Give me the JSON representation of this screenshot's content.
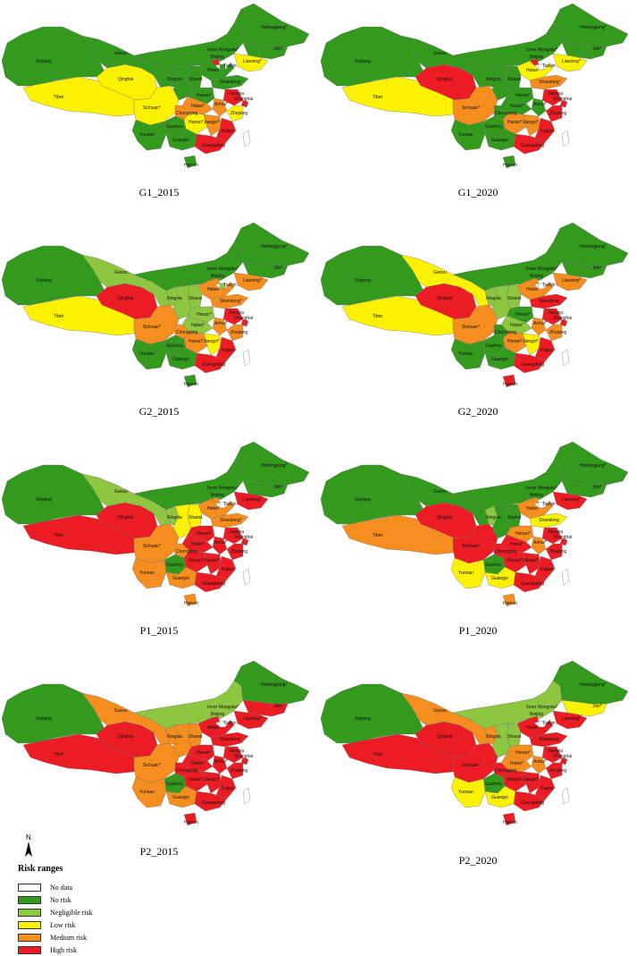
{
  "legend": {
    "title": "Risk ranges",
    "items": [
      {
        "label": "No data",
        "color": "#ffffff"
      },
      {
        "label": "No risk",
        "color": "#339a1e"
      },
      {
        "label": "Negligible risk",
        "color": "#8dc63f"
      },
      {
        "label": "Low risk",
        "color": "#fdf102"
      },
      {
        "label": "Medium risk",
        "color": "#f58e1f"
      },
      {
        "label": "High risk",
        "color": "#ec1c24"
      }
    ]
  },
  "north_arrow": {
    "label": "N"
  },
  "panels": [
    {
      "title": "G1_2015",
      "labels": [
        "Xinjiang",
        "Gansu",
        "Qinghai",
        "Tibet",
        "Ningxia",
        "Shanxi",
        "Henan*",
        "Sichuan*",
        "Chongqing",
        "Hubei*",
        "Guizhou",
        "Yunnan",
        "Guangxi",
        "Hainan",
        "Hunan*",
        "Jiangxi*",
        "Anhui*",
        "Shandong",
        "Inner Mongolia*",
        "Heilongjiang*",
        "Jilin*",
        "Liaoning*",
        "Beijing",
        "Hebei",
        "Tianjin",
        "Zhejiang",
        "Shanghai",
        "Jiangsu",
        "Fujian",
        "Guangdong"
      ]
    },
    {
      "title": "G1_2020",
      "labels": [
        "Xinjiang",
        "Gansu",
        "Qinghai",
        "Tibet",
        "Ningxia",
        "Shanxi",
        "Henan*",
        "Sichuan*",
        "Chongqing",
        "Hubei*",
        "Guizhou",
        "Yunnan",
        "Guangxi",
        "Hainan",
        "Hunan*",
        "Jiangxi*",
        "Anhui*",
        "Shandong*",
        "Inner Mongolia*",
        "Heilongjiang*",
        "Jilin*",
        "Liaoning*",
        "Beijing",
        "Hebei",
        "Tianjin",
        "Zhejiang",
        "Shanghai",
        "Jiangsu",
        "Fujian",
        "Guangdong"
      ]
    },
    {
      "title": "G2_2015",
      "labels": [
        "Xinjiang",
        "Gansu",
        "Qinghai",
        "Tibet",
        "Ningxia",
        "Shanxi",
        "Henan*",
        "Sichuan*",
        "Chongqing",
        "Hubei*",
        "Guizhou",
        "Yunnan",
        "Guangxi",
        "Hainan",
        "Hunan*",
        "Jiangxi*",
        "Anhui*",
        "Shandong*",
        "Inner Mongolia*",
        "Heilongjiang*",
        "Jilin*",
        "Liaoning*",
        "Beijing",
        "Hebei",
        "Tianjin",
        "Zhejiang",
        "Shanghai",
        "Jiangsu",
        "Fujian",
        "Guangdong"
      ]
    },
    {
      "title": "G2_2020",
      "labels": [
        "Xinjiang",
        "Gansu",
        "Qinghai",
        "Tibet",
        "Ningxia",
        "Shanxi",
        "Henan*",
        "Sichuan*",
        "Chongqing",
        "Hubei*",
        "Guizhou",
        "Yunnan",
        "Guangxi",
        "Hainan",
        "Hunan*",
        "Jiangxi*",
        "Anhui*",
        "Shandong",
        "Inner Mongolia*",
        "Heilongjiang*",
        "Jilin*",
        "Liaoning*",
        "Beijing",
        "Hebei",
        "Tianjin",
        "Zhejiang",
        "Shanghai",
        "Jiangsu",
        "Fujian",
        "Guangdong"
      ]
    },
    {
      "title": "P1_2015",
      "labels": [
        "Xinjiang",
        "Gansu",
        "Qinghai",
        "Tibet",
        "Ningxia",
        "Shanxi",
        "Henan*",
        "Sichuan*",
        "Chongqing",
        "Hubei*",
        "Guizhou",
        "Yunnan",
        "Guangxi",
        "Hainan",
        "Hunan*",
        "Jiangxi*",
        "Anhui*",
        "Shandong*",
        "Inner Mongolia*",
        "Heilongjiang*",
        "Jilin*",
        "Liaoning*",
        "Beijing",
        "Hebei",
        "Tianjin",
        "Zhejiang",
        "Shanghai",
        "Jiangsu",
        "Fujian",
        "Guangdong"
      ]
    },
    {
      "title": "P1_2020",
      "labels": [
        "Xinjiang",
        "Gansu",
        "Qinghai",
        "Tibet",
        "Ningxia",
        "Shanxi",
        "Henan*",
        "Sichuan*",
        "Chongqing",
        "Hubei*",
        "Guizhou",
        "Yunnan",
        "Guangxi",
        "Hainan",
        "Hunan*",
        "Jiangxi*",
        "Anhui*",
        "Shandong",
        "Inner Mongolia*",
        "Heilongjiang*",
        "Jilin*",
        "Liaoning*",
        "Beijing",
        "Hebei",
        "Tianjin",
        "Zhejiang",
        "Shanghai",
        "Jiangsu",
        "Fujian",
        "Guangdong"
      ]
    },
    {
      "title": "P2_2015",
      "labels": [
        "Xinjiang",
        "Gansu",
        "Qinghai",
        "Tibet",
        "Ningxia",
        "Shanxi",
        "Henan*",
        "Sichuan*",
        "Chongqing",
        "Hubei*",
        "Guizhou",
        "Yunnan",
        "Guangxi",
        "Hainan",
        "Hunan*",
        "Jiangxi*",
        "Anhui*",
        "Shandong",
        "Inner Mongolia*",
        "Heilongjiang*",
        "Jilin*",
        "Liaoning*",
        "Beijing",
        "Hebei",
        "Tianjin",
        "Zhejiang",
        "Shanghai",
        "Jiangsu",
        "Fujian",
        "Guangdong"
      ]
    },
    {
      "title": "P2_2020",
      "labels": [
        "Xinjiang",
        "Gansu",
        "Qinghai",
        "Tibet",
        "Ningxia",
        "Shanxi",
        "Henan*",
        "Sichuan*",
        "Chongqing",
        "Hubei*",
        "Guizhou",
        "Yunnan",
        "Guangxi",
        "Hainan",
        "Hunan*",
        "Jiangxi*",
        "Anhui*",
        "Shandong",
        "Inner Mongolia*",
        "Heilongjiang*",
        "Jilin*",
        "Liaoning*",
        "Beijing",
        "Hebei",
        "Tianjin",
        "Zhejiang",
        "Shanghai",
        "Jiangsu",
        "Fujian",
        "Guangdong"
      ]
    }
  ],
  "risk_maps": [
    {
      "Xinjiang": "No risk",
      "Gansu": "No risk",
      "Qinghai": "Low risk",
      "Tibet": "Low risk",
      "Ningxia": "No risk",
      "Shanxi": "No risk",
      "Henan": "No risk",
      "Sichuan": "Low risk",
      "Chongqing": "Medium risk",
      "Hubei": "Medium risk",
      "Guizhou": "No risk",
      "Yunnan": "No risk",
      "Guangxi": "No risk",
      "Hainan": "No risk",
      "Hunan": "Low risk",
      "Jiangxi": "Medium risk",
      "Anhui": "Medium risk",
      "Shandong": "No risk",
      "Inner Mongolia": "No risk",
      "Heilongjiang": "No risk",
      "Jilin": "No risk",
      "Liaoning": "Low risk",
      "Beijing": "High risk",
      "Hebei": "No risk",
      "Tianjin": "No risk",
      "Zhejiang": "Low risk",
      "Shanghai": "High risk",
      "Jiangsu": "High risk",
      "Fujian": "High risk",
      "Guangdong": "High risk"
    },
    {
      "Xinjiang": "No risk",
      "Gansu": "No risk",
      "Qinghai": "High risk",
      "Tibet": "Low risk",
      "Ningxia": "No risk",
      "Shanxi": "No risk",
      "Henan": "No risk",
      "Sichuan": "Medium risk",
      "Chongqing": "No risk",
      "Hubei": "No risk",
      "Guizhou": "No risk",
      "Yunnan": "No risk",
      "Guangxi": "No risk",
      "Hainan": "No risk",
      "Hunan": "Medium risk",
      "Jiangxi": "Medium risk",
      "Anhui": "No risk",
      "Shandong": "Medium risk",
      "Inner Mongolia": "No risk",
      "Heilongjiang": "No risk",
      "Jilin": "No risk",
      "Liaoning": "Low risk",
      "Beijing": "High risk",
      "Hebei": "Low risk",
      "Tianjin": "No data",
      "Zhejiang": "High risk",
      "Shanghai": "High risk",
      "Jiangsu": "High risk",
      "Fujian": "High risk",
      "Guangdong": "High risk"
    },
    {
      "Xinjiang": "No risk",
      "Gansu": "Negligible risk",
      "Qinghai": "High risk",
      "Tibet": "Low risk",
      "Ningxia": "Negligible risk",
      "Shanxi": "Negligible risk",
      "Henan": "Negligible risk",
      "Sichuan": "Medium risk",
      "Chongqing": "Medium risk",
      "Hubei": "Negligible risk",
      "Guizhou": "No risk",
      "Yunnan": "No risk",
      "Guangxi": "No risk",
      "Hainan": "No risk",
      "Hunan": "Medium risk",
      "Jiangxi": "Low risk",
      "Anhui": "Medium risk",
      "Shandong": "Medium risk",
      "Inner Mongolia": "No risk",
      "Heilongjiang": "No risk",
      "Jilin": "No risk",
      "Liaoning": "Medium risk",
      "Beijing": "Medium risk",
      "Hebei": "Medium risk",
      "Tianjin": "Negligible risk",
      "Zhejiang": "Medium risk",
      "Shanghai": "High risk",
      "Jiangsu": "High risk",
      "Fujian": "High risk",
      "Guangdong": "High risk"
    },
    {
      "Xinjiang": "No risk",
      "Gansu": "Low risk",
      "Qinghai": "High risk",
      "Tibet": "Low risk",
      "Ningxia": "Negligible risk",
      "Shanxi": "Negligible risk",
      "Henan": "No risk",
      "Sichuan": "Medium risk",
      "Chongqing": "No risk",
      "Hubei": "Negligible risk",
      "Guizhou": "No risk",
      "Yunnan": "No risk",
      "Guangxi": "No risk",
      "Hainan": "High risk",
      "Hunan": "Medium risk",
      "Jiangxi": "Low risk",
      "Anhui": "Medium risk",
      "Shandong": "High risk",
      "Inner Mongolia": "No risk",
      "Heilongjiang": "No risk",
      "Jilin": "No risk",
      "Liaoning": "Medium risk",
      "Beijing": "Medium risk",
      "Hebei": "Medium risk",
      "Tianjin": "No data",
      "Zhejiang": "Medium risk",
      "Shanghai": "High risk",
      "Jiangsu": "High risk",
      "Fujian": "High risk",
      "Guangdong": "High risk"
    },
    {
      "Xinjiang": "No risk",
      "Gansu": "Negligible risk",
      "Qinghai": "High risk",
      "Tibet": "High risk",
      "Ningxia": "Negligible risk",
      "Shanxi": "Low risk",
      "Henan": "High risk",
      "Sichuan": "Medium risk",
      "Chongqing": "Medium risk",
      "Hubei": "High risk",
      "Guizhou": "No risk",
      "Yunnan": "Medium risk",
      "Guangxi": "Medium risk",
      "Hainan": "Medium risk",
      "Hunan": "High risk",
      "Jiangxi": "High risk",
      "Anhui": "High risk",
      "Shandong": "Medium risk",
      "Inner Mongolia": "No risk",
      "Heilongjiang": "No risk",
      "Jilin": "No risk",
      "Liaoning": "High risk",
      "Beijing": "Medium risk",
      "Hebei": "Medium risk",
      "Tianjin": "No data",
      "Zhejiang": "High risk",
      "Shanghai": "High risk",
      "Jiangsu": "High risk",
      "Fujian": "High risk",
      "Guangdong": "High risk"
    },
    {
      "Xinjiang": "No risk",
      "Gansu": "No risk",
      "Qinghai": "High risk",
      "Tibet": "Medium risk",
      "Ningxia": "Negligible risk",
      "Shanxi": "No risk",
      "Henan": "Medium risk",
      "Sichuan": "High risk",
      "Chongqing": "High risk",
      "Hubei": "High risk",
      "Guizhou": "No risk",
      "Yunnan": "Low risk",
      "Guangxi": "Low risk",
      "Hainan": "Medium risk",
      "Hunan": "High risk",
      "Jiangxi": "High risk",
      "Anhui": "Medium risk",
      "Shandong": "Low risk",
      "Inner Mongolia": "No risk",
      "Heilongjiang": "No risk",
      "Jilin": "No risk",
      "Liaoning": "High risk",
      "Beijing": "Medium risk",
      "Hebei": "Medium risk",
      "Tianjin": "No data",
      "Zhejiang": "High risk",
      "Shanghai": "High risk",
      "Jiangsu": "High risk",
      "Fujian": "High risk",
      "Guangdong": "High risk"
    },
    {
      "Xinjiang": "No risk",
      "Gansu": "Medium risk",
      "Qinghai": "High risk",
      "Tibet": "High risk",
      "Ningxia": "Medium risk",
      "Shanxi": "Medium risk",
      "Henan": "High risk",
      "Sichuan": "Medium risk",
      "Chongqing": "High risk",
      "Hubei": "High risk",
      "Guizhou": "No risk",
      "Yunnan": "Medium risk",
      "Guangxi": "Medium risk",
      "Hainan": "High risk",
      "Hunan": "High risk",
      "Jiangxi": "High risk",
      "Anhui": "High risk",
      "Shandong": "High risk",
      "Inner Mongolia": "Negligible risk",
      "Heilongjiang": "No risk",
      "Jilin": "High risk",
      "Liaoning": "High risk",
      "Beijing": "High risk",
      "Hebei": "High risk",
      "Tianjin": "No data",
      "Zhejiang": "High risk",
      "Shanghai": "High risk",
      "Jiangsu": "High risk",
      "Fujian": "High risk",
      "Guangdong": "High risk"
    },
    {
      "Xinjiang": "No risk",
      "Gansu": "Medium risk",
      "Qinghai": "High risk",
      "Tibet": "High risk",
      "Ningxia": "Medium risk",
      "Shanxi": "Negligible risk",
      "Henan": "Medium risk",
      "Sichuan": "High risk",
      "Chongqing": "High risk",
      "Hubei": "Medium risk",
      "Guizhou": "No risk",
      "Yunnan": "Low risk",
      "Guangxi": "Low risk",
      "Hainan": "High risk",
      "Hunan": "High risk",
      "Jiangxi": "High risk",
      "Anhui": "Medium risk",
      "Shandong": "High risk",
      "Inner Mongolia": "Negligible risk",
      "Heilongjiang": "No risk",
      "Jilin": "Low risk",
      "Liaoning": "High risk",
      "Beijing": "High risk",
      "Hebei": "High risk",
      "Tianjin": "No data",
      "Zhejiang": "High risk",
      "Shanghai": "High risk",
      "Jiangsu": "High risk",
      "Fujian": "High risk",
      "Guangdong": "High risk"
    }
  ]
}
